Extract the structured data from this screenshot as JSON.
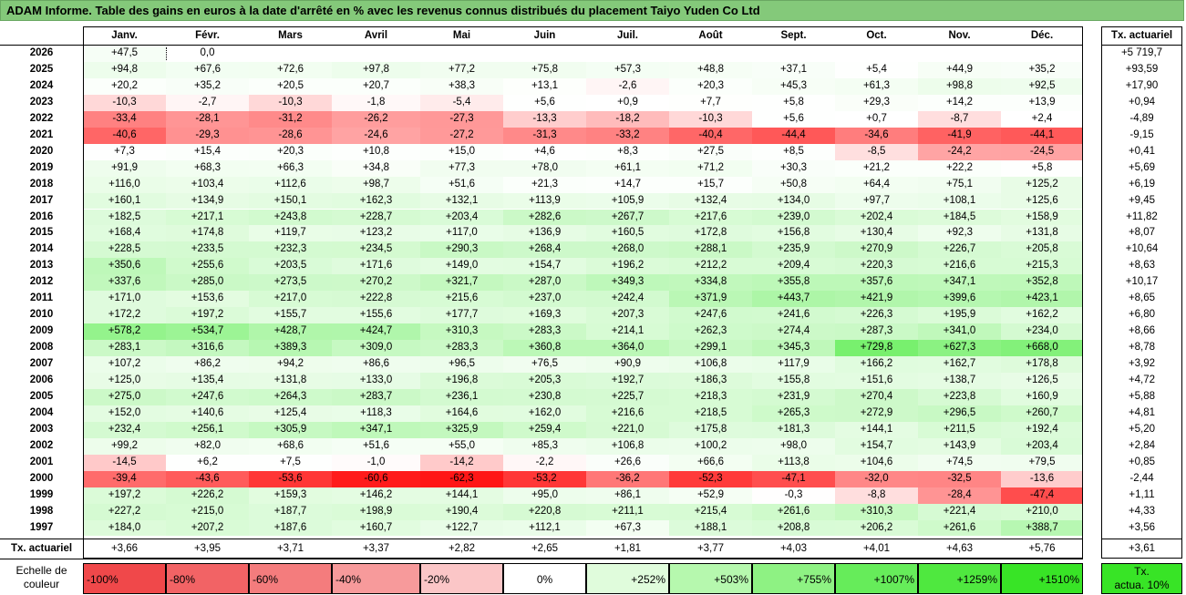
{
  "title": "ADAM Informe. Table des gains en euros à la date d'arrêté en % avec les revenus connus distribués du placement Taiyo Yuden Co Ltd",
  "months": [
    "Janv.",
    "Févr.",
    "Mars",
    "Avril",
    "Mai",
    "Juin",
    "Juil.",
    "Août",
    "Sept.",
    "Oct.",
    "Nov.",
    "Déc."
  ],
  "annual_header": "Tx. actuariel",
  "rows": [
    {
      "year": "2026",
      "values": [
        "+47,5",
        "0,0",
        "",
        "",
        "",
        "",
        "",
        "",
        "",
        "",
        "",
        ""
      ],
      "annual": "+5 719,7"
    },
    {
      "year": "2025",
      "values": [
        "+94,8",
        "+67,6",
        "+72,6",
        "+97,8",
        "+77,2",
        "+75,8",
        "+57,3",
        "+48,8",
        "+37,1",
        "+5,4",
        "+44,9",
        "+35,2"
      ],
      "annual": "+93,59"
    },
    {
      "year": "2024",
      "values": [
        "+20,2",
        "+35,2",
        "+20,5",
        "+20,7",
        "+38,3",
        "+13,1",
        "-2,6",
        "+20,3",
        "+45,3",
        "+61,3",
        "+98,8",
        "+92,5"
      ],
      "annual": "+17,90"
    },
    {
      "year": "2023",
      "values": [
        "-10,3",
        "-2,7",
        "-10,3",
        "-1,8",
        "-5,4",
        "+5,6",
        "+0,9",
        "+7,7",
        "+5,8",
        "+29,3",
        "+14,2",
        "+13,9"
      ],
      "annual": "+0,94"
    },
    {
      "year": "2022",
      "values": [
        "-33,4",
        "-28,1",
        "-31,2",
        "-26,2",
        "-27,3",
        "-13,3",
        "-18,2",
        "-10,3",
        "+5,6",
        "+0,7",
        "-8,7",
        "+2,4"
      ],
      "annual": "-4,89"
    },
    {
      "year": "2021",
      "values": [
        "-40,6",
        "-29,3",
        "-28,6",
        "-24,6",
        "-27,2",
        "-31,3",
        "-33,2",
        "-40,4",
        "-44,4",
        "-34,6",
        "-41,9",
        "-44,1"
      ],
      "annual": "-9,15"
    },
    {
      "year": "2020",
      "values": [
        "+7,3",
        "+15,4",
        "+20,3",
        "+10,8",
        "+15,0",
        "+4,6",
        "+8,3",
        "+27,5",
        "+8,5",
        "-8,5",
        "-24,2",
        "-24,5"
      ],
      "annual": "+0,41"
    },
    {
      "year": "2019",
      "values": [
        "+91,9",
        "+68,3",
        "+66,3",
        "+34,8",
        "+77,3",
        "+78,0",
        "+61,1",
        "+71,2",
        "+30,3",
        "+21,2",
        "+22,2",
        "+5,8"
      ],
      "annual": "+5,69"
    },
    {
      "year": "2018",
      "values": [
        "+116,0",
        "+103,4",
        "+112,6",
        "+98,7",
        "+51,6",
        "+21,3",
        "+14,7",
        "+15,7",
        "+50,8",
        "+64,4",
        "+75,1",
        "+125,2"
      ],
      "annual": "+6,19"
    },
    {
      "year": "2017",
      "values": [
        "+160,1",
        "+134,9",
        "+150,1",
        "+162,3",
        "+132,1",
        "+113,9",
        "+105,9",
        "+132,4",
        "+134,0",
        "+97,7",
        "+108,1",
        "+125,6"
      ],
      "annual": "+9,45"
    },
    {
      "year": "2016",
      "values": [
        "+182,5",
        "+217,1",
        "+243,8",
        "+228,7",
        "+203,4",
        "+282,6",
        "+267,7",
        "+217,6",
        "+239,0",
        "+202,4",
        "+184,5",
        "+158,9"
      ],
      "annual": "+11,82"
    },
    {
      "year": "2015",
      "values": [
        "+168,4",
        "+174,8",
        "+119,7",
        "+123,2",
        "+117,0",
        "+136,9",
        "+160,5",
        "+172,8",
        "+156,8",
        "+130,4",
        "+92,3",
        "+131,8"
      ],
      "annual": "+8,07"
    },
    {
      "year": "2014",
      "values": [
        "+228,5",
        "+233,5",
        "+232,3",
        "+234,5",
        "+290,3",
        "+268,4",
        "+268,0",
        "+288,1",
        "+235,9",
        "+270,9",
        "+226,7",
        "+205,8"
      ],
      "annual": "+10,64"
    },
    {
      "year": "2013",
      "values": [
        "+350,6",
        "+255,6",
        "+203,5",
        "+171,6",
        "+149,0",
        "+154,7",
        "+196,2",
        "+212,2",
        "+209,4",
        "+220,3",
        "+216,6",
        "+215,3"
      ],
      "annual": "+8,63"
    },
    {
      "year": "2012",
      "values": [
        "+337,6",
        "+285,0",
        "+273,5",
        "+270,2",
        "+321,7",
        "+287,0",
        "+349,3",
        "+334,8",
        "+355,8",
        "+357,6",
        "+347,1",
        "+352,8"
      ],
      "annual": "+10,17"
    },
    {
      "year": "2011",
      "values": [
        "+171,0",
        "+153,6",
        "+217,0",
        "+222,8",
        "+215,6",
        "+237,0",
        "+242,4",
        "+371,9",
        "+443,7",
        "+421,9",
        "+399,6",
        "+423,1"
      ],
      "annual": "+8,65"
    },
    {
      "year": "2010",
      "values": [
        "+172,2",
        "+197,2",
        "+155,7",
        "+155,6",
        "+177,7",
        "+169,3",
        "+207,3",
        "+247,6",
        "+241,6",
        "+226,3",
        "+195,9",
        "+162,2"
      ],
      "annual": "+6,80"
    },
    {
      "year": "2009",
      "values": [
        "+578,2",
        "+534,7",
        "+428,7",
        "+424,7",
        "+310,3",
        "+283,3",
        "+214,1",
        "+262,3",
        "+274,4",
        "+287,3",
        "+341,0",
        "+234,0"
      ],
      "annual": "+8,66"
    },
    {
      "year": "2008",
      "values": [
        "+283,1",
        "+316,6",
        "+389,3",
        "+309,0",
        "+283,3",
        "+360,8",
        "+364,0",
        "+299,1",
        "+345,3",
        "+729,8",
        "+627,3",
        "+668,0"
      ],
      "annual": "+8,78"
    },
    {
      "year": "2007",
      "values": [
        "+107,2",
        "+86,2",
        "+94,2",
        "+86,6",
        "+96,5",
        "+76,5",
        "+90,9",
        "+106,8",
        "+117,9",
        "+166,2",
        "+162,7",
        "+178,8"
      ],
      "annual": "+3,92"
    },
    {
      "year": "2006",
      "values": [
        "+125,0",
        "+135,4",
        "+131,8",
        "+133,0",
        "+196,8",
        "+205,3",
        "+192,7",
        "+186,3",
        "+155,8",
        "+151,6",
        "+138,7",
        "+126,5"
      ],
      "annual": "+4,72"
    },
    {
      "year": "2005",
      "values": [
        "+275,0",
        "+247,6",
        "+264,3",
        "+283,7",
        "+236,1",
        "+230,8",
        "+225,7",
        "+218,3",
        "+231,9",
        "+270,4",
        "+223,8",
        "+160,9"
      ],
      "annual": "+5,88"
    },
    {
      "year": "2004",
      "values": [
        "+152,0",
        "+140,6",
        "+125,4",
        "+118,3",
        "+164,6",
        "+162,0",
        "+216,6",
        "+218,5",
        "+265,3",
        "+272,9",
        "+296,5",
        "+260,7"
      ],
      "annual": "+4,81"
    },
    {
      "year": "2003",
      "values": [
        "+232,4",
        "+256,1",
        "+305,9",
        "+347,1",
        "+325,9",
        "+259,4",
        "+221,0",
        "+175,8",
        "+181,3",
        "+144,1",
        "+211,5",
        "+192,4"
      ],
      "annual": "+5,20"
    },
    {
      "year": "2002",
      "values": [
        "+99,2",
        "+82,0",
        "+68,6",
        "+51,6",
        "+55,0",
        "+85,3",
        "+106,8",
        "+100,2",
        "+98,0",
        "+154,7",
        "+143,9",
        "+203,4"
      ],
      "annual": "+2,84"
    },
    {
      "year": "2001",
      "values": [
        "-14,5",
        "+6,2",
        "+7,5",
        "-1,0",
        "-14,2",
        "-2,2",
        "+26,6",
        "+66,6",
        "+113,8",
        "+104,6",
        "+74,5",
        "+79,5"
      ],
      "annual": "+0,85"
    },
    {
      "year": "2000",
      "values": [
        "-39,4",
        "-43,6",
        "-53,6",
        "-60,6",
        "-62,3",
        "-53,2",
        "-36,2",
        "-52,3",
        "-47,1",
        "-32,0",
        "-32,5",
        "-13,6"
      ],
      "annual": "-2,44"
    },
    {
      "year": "1999",
      "values": [
        "+197,2",
        "+226,2",
        "+159,3",
        "+146,2",
        "+144,1",
        "+95,0",
        "+86,1",
        "+52,9",
        "-0,3",
        "-8,8",
        "-28,4",
        "-47,4"
      ],
      "annual": "+1,11"
    },
    {
      "year": "1998",
      "values": [
        "+227,2",
        "+215,0",
        "+187,7",
        "+198,9",
        "+190,4",
        "+220,8",
        "+211,1",
        "+215,4",
        "+261,6",
        "+310,3",
        "+221,4",
        "+210,0"
      ],
      "annual": "+4,33"
    },
    {
      "year": "1997",
      "values": [
        "+184,0",
        "+207,2",
        "+187,6",
        "+160,7",
        "+122,7",
        "+112,1",
        "+67,3",
        "+188,1",
        "+208,8",
        "+206,2",
        "+261,6",
        "+388,7"
      ],
      "annual": "+3,56"
    }
  ],
  "footer": {
    "label": "Tx. actuariel",
    "values": [
      "+3,66",
      "+3,95",
      "+3,71",
      "+3,37",
      "+2,82",
      "+2,65",
      "+1,81",
      "+3,77",
      "+4,03",
      "+4,01",
      "+4,63",
      "+5,76"
    ],
    "annual": "+3,61"
  },
  "legend": {
    "label_line1": "Echelle de",
    "label_line2": "couleur",
    "items": [
      {
        "label": "-100%",
        "color": "#f0484a"
      },
      {
        "label": "-80%",
        "color": "#f26365"
      },
      {
        "label": "-60%",
        "color": "#f47c7d"
      },
      {
        "label": "-40%",
        "color": "#f79a9b"
      },
      {
        "label": "-20%",
        "color": "#fbc6c7"
      },
      {
        "label": "0%",
        "color": "#ffffff"
      },
      {
        "label": "+252%",
        "color": "#e0fcdc"
      },
      {
        "label": "+503%",
        "color": "#b6f8ae"
      },
      {
        "label": "+755%",
        "color": "#8ef283"
      },
      {
        "label": "+1007%",
        "color": "#66ec5a"
      },
      {
        "label": "+1259%",
        "color": "#4fe83f"
      },
      {
        "label": "+1510%",
        "color": "#38e426"
      }
    ],
    "annual_line1": "Tx.",
    "annual_line2": "actua. 10%",
    "annual_color": "#38e426"
  }
}
